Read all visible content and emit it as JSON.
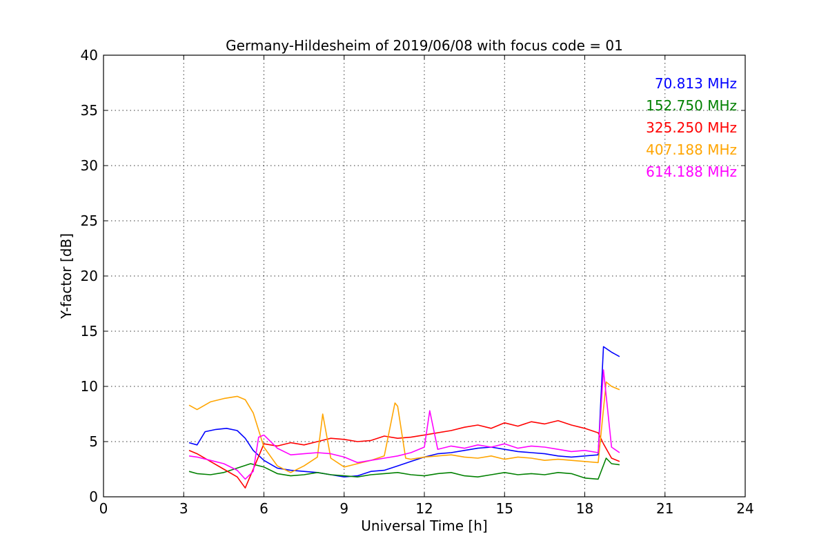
{
  "chart_data": {
    "type": "line",
    "title": "Germany-Hildesheim of 2019/06/08 with focus code = 01",
    "xlabel": "Universal Time [h]",
    "ylabel": "Y-factor [dB]",
    "xlim": [
      0,
      24
    ],
    "ylim": [
      0,
      40
    ],
    "xticks": [
      0,
      3,
      6,
      9,
      12,
      15,
      18,
      21,
      24
    ],
    "yticks": [
      0,
      5,
      10,
      15,
      20,
      25,
      30,
      35,
      40
    ],
    "grid": true,
    "legend_position": "top-right",
    "series": [
      {
        "name": "70.813 MHz",
        "color": "#0000ff",
        "x": [
          3.2,
          3.5,
          3.8,
          4.2,
          4.6,
          5.0,
          5.3,
          5.6,
          6.0,
          6.5,
          7.0,
          7.5,
          8.0,
          8.5,
          9.0,
          9.5,
          10.0,
          10.5,
          11.0,
          11.5,
          12.0,
          12.5,
          13.0,
          13.5,
          14.0,
          14.5,
          15.0,
          15.5,
          16.0,
          16.5,
          17.0,
          17.5,
          18.0,
          18.5,
          18.7,
          19.0,
          19.3
        ],
        "y": [
          4.9,
          4.7,
          5.9,
          6.1,
          6.2,
          6.0,
          5.3,
          4.2,
          3.3,
          2.6,
          2.4,
          2.3,
          2.2,
          2.0,
          1.8,
          1.9,
          2.3,
          2.4,
          2.8,
          3.2,
          3.6,
          3.9,
          4.0,
          4.2,
          4.4,
          4.5,
          4.3,
          4.1,
          4.0,
          3.9,
          3.7,
          3.6,
          3.7,
          3.8,
          13.6,
          13.1,
          12.7
        ]
      },
      {
        "name": "152.750 MHz",
        "color": "#008000",
        "x": [
          3.2,
          3.5,
          4.0,
          4.5,
          5.0,
          5.5,
          6.0,
          6.5,
          7.0,
          7.5,
          8.0,
          8.5,
          9.0,
          9.5,
          10.0,
          10.5,
          11.0,
          11.5,
          12.0,
          12.5,
          13.0,
          13.5,
          14.0,
          14.5,
          15.0,
          15.5,
          16.0,
          16.5,
          17.0,
          17.5,
          18.0,
          18.5,
          18.8,
          19.0,
          19.3
        ],
        "y": [
          2.3,
          2.1,
          2.0,
          2.2,
          2.6,
          3.0,
          2.7,
          2.1,
          1.9,
          2.0,
          2.2,
          2.0,
          1.9,
          1.8,
          2.0,
          2.1,
          2.2,
          2.0,
          1.9,
          2.1,
          2.2,
          1.9,
          1.8,
          2.0,
          2.2,
          2.0,
          2.1,
          2.0,
          2.2,
          2.1,
          1.7,
          1.6,
          3.5,
          3.0,
          2.9
        ]
      },
      {
        "name": "325.250 MHz",
        "color": "#ff0000",
        "x": [
          3.2,
          3.5,
          4.0,
          4.5,
          5.0,
          5.3,
          5.6,
          6.0,
          6.5,
          7.0,
          7.5,
          8.0,
          8.5,
          9.0,
          9.5,
          10.0,
          10.5,
          11.0,
          11.5,
          12.0,
          12.5,
          13.0,
          13.5,
          14.0,
          14.5,
          15.0,
          15.5,
          16.0,
          16.5,
          17.0,
          17.5,
          18.0,
          18.5,
          18.7,
          19.0,
          19.3
        ],
        "y": [
          4.2,
          3.9,
          3.2,
          2.5,
          1.8,
          0.8,
          2.5,
          4.8,
          4.6,
          4.9,
          4.7,
          5.0,
          5.3,
          5.2,
          5.0,
          5.1,
          5.5,
          5.3,
          5.4,
          5.6,
          5.8,
          6.0,
          6.3,
          6.5,
          6.2,
          6.7,
          6.4,
          6.8,
          6.6,
          6.9,
          6.5,
          6.2,
          5.8,
          4.8,
          3.5,
          3.2
        ]
      },
      {
        "name": "407.188 MHz",
        "color": "#ffa500",
        "x": [
          3.2,
          3.5,
          4.0,
          4.5,
          5.0,
          5.3,
          5.6,
          6.0,
          6.5,
          7.0,
          7.5,
          8.0,
          8.2,
          8.5,
          9.0,
          9.5,
          10.0,
          10.5,
          10.9,
          11.0,
          11.3,
          11.5,
          12.0,
          12.5,
          13.0,
          13.5,
          14.0,
          14.5,
          15.0,
          15.5,
          16.0,
          16.5,
          17.0,
          17.5,
          18.0,
          18.5,
          18.8,
          19.0,
          19.3
        ],
        "y": [
          8.3,
          7.9,
          8.6,
          8.9,
          9.1,
          8.8,
          7.6,
          4.5,
          2.8,
          2.2,
          2.8,
          3.6,
          7.5,
          3.5,
          2.7,
          3.0,
          3.3,
          3.7,
          8.5,
          8.2,
          3.5,
          3.4,
          3.6,
          3.7,
          3.8,
          3.6,
          3.5,
          3.7,
          3.4,
          3.6,
          3.5,
          3.3,
          3.4,
          3.3,
          3.2,
          3.1,
          10.4,
          10.0,
          9.7
        ]
      },
      {
        "name": "614.188 MHz",
        "color": "#ff00ff",
        "x": [
          3.2,
          3.5,
          4.0,
          4.5,
          5.0,
          5.3,
          5.6,
          5.8,
          6.0,
          6.5,
          7.0,
          7.5,
          8.0,
          8.5,
          9.0,
          9.5,
          10.0,
          10.5,
          11.0,
          11.5,
          12.0,
          12.2,
          12.5,
          13.0,
          13.5,
          14.0,
          14.5,
          15.0,
          15.5,
          16.0,
          16.5,
          17.0,
          17.5,
          18.0,
          18.5,
          18.7,
          19.0,
          19.3
        ],
        "y": [
          3.7,
          3.6,
          3.3,
          3.0,
          2.4,
          1.6,
          2.3,
          5.4,
          5.6,
          4.4,
          3.8,
          3.9,
          4.0,
          3.9,
          3.6,
          3.1,
          3.3,
          3.5,
          3.7,
          4.0,
          4.5,
          7.8,
          4.3,
          4.6,
          4.4,
          4.7,
          4.5,
          4.8,
          4.4,
          4.6,
          4.5,
          4.3,
          4.1,
          4.2,
          4.0,
          11.5,
          4.5,
          4.0
        ]
      }
    ]
  }
}
